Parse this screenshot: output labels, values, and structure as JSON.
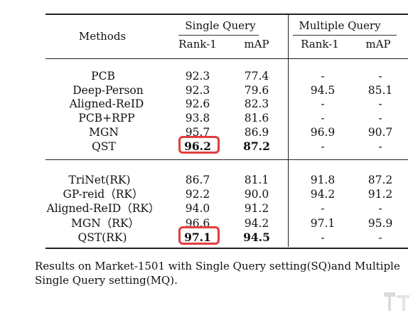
{
  "table": {
    "header": {
      "methods": "Methods",
      "single_query": "Single Query",
      "multiple_query": "Multiple Query",
      "rank1_sq": "Rank-1",
      "map_sq": "mAP",
      "rank1_mq": "Rank-1",
      "map_mq": "mAP"
    },
    "group1": [
      {
        "method": "PCB",
        "sq_rank1": "92.3",
        "sq_map": "77.4",
        "mq_rank1": "-",
        "mq_map": "-"
      },
      {
        "method": "Deep-Person",
        "sq_rank1": "92.3",
        "sq_map": "79.6",
        "mq_rank1": "94.5",
        "mq_map": "85.1"
      },
      {
        "method": "Aligned-ReID",
        "sq_rank1": "92.6",
        "sq_map": "82.3",
        "mq_rank1": "-",
        "mq_map": "-"
      },
      {
        "method": "PCB+RPP",
        "sq_rank1": "93.8",
        "sq_map": "81.6",
        "mq_rank1": "-",
        "mq_map": "-"
      },
      {
        "method": "MGN",
        "sq_rank1": "95.7",
        "sq_map": "86.9",
        "mq_rank1": "96.9",
        "mq_map": "90.7"
      },
      {
        "method": "QST",
        "sq_rank1": "96.2",
        "sq_map": "87.2",
        "mq_rank1": "-",
        "mq_map": "-"
      }
    ],
    "group2": [
      {
        "method": "TriNet(RK)",
        "sq_rank1": "86.7",
        "sq_map": "81.1",
        "mq_rank1": "91.8",
        "mq_map": "87.2"
      },
      {
        "method": "GP-reid（RK）",
        "sq_rank1": "92.2",
        "sq_map": "90.0",
        "mq_rank1": "94.2",
        "mq_map": "91.2"
      },
      {
        "method": "Aligned-ReID（RK）",
        "sq_rank1": "94.0",
        "sq_map": "91.2",
        "mq_rank1": "-",
        "mq_map": "-"
      },
      {
        "method": "MGN（RK）",
        "sq_rank1": "96.6",
        "sq_map": "94.2",
        "mq_rank1": "97.1",
        "mq_map": "95.9"
      },
      {
        "method": "QST(RK)",
        "sq_rank1": "97.1",
        "sq_map": "94.5",
        "mq_rank1": "-",
        "mq_map": "-"
      }
    ]
  },
  "caption": "Results on Market-1501 with Single Query setting(SQ)and Multiple Single Query setting(MQ).",
  "colors": {
    "highlight_box": "#e43d3d",
    "rules": "#222222"
  },
  "icons": {
    "watermark": "watermark-logo-icon"
  }
}
